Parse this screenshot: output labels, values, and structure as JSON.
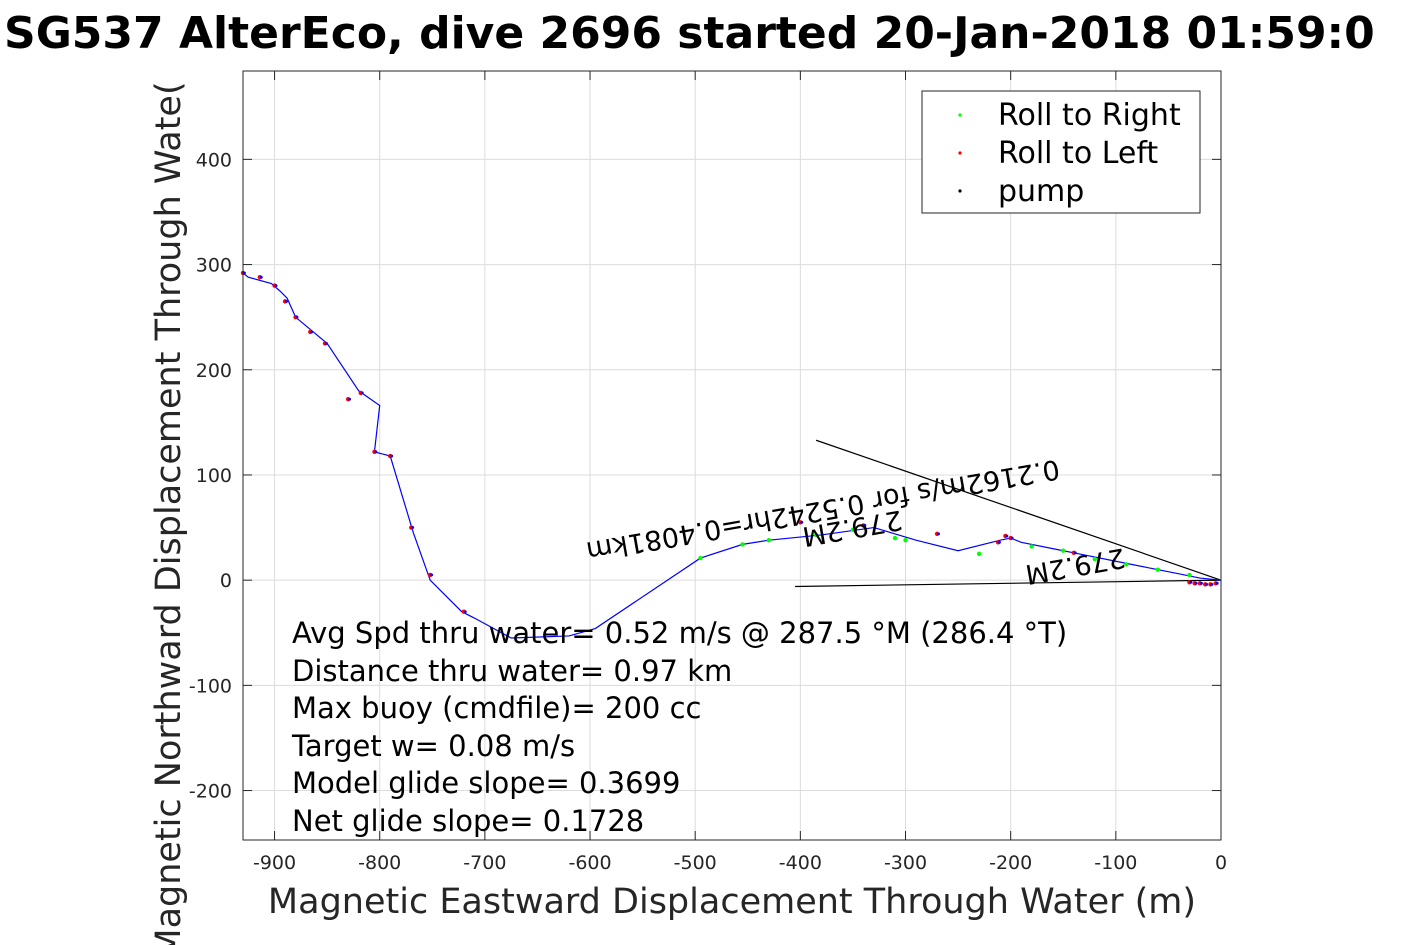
{
  "chart_data": {
    "type": "line",
    "title": "SG537 AlterEco, dive 2696 started 20-Jan-2018 01:59:0",
    "xlabel": "Magnetic Eastward Displacement Through Water (m)",
    "ylabel": "Magnetic Northward Displacement Through Wate(",
    "xlim": [
      -930,
      0
    ],
    "ylim": [
      -247,
      484
    ],
    "xticks": [
      -900,
      -800,
      -700,
      -600,
      -500,
      -400,
      -300,
      -200,
      -100,
      0
    ],
    "yticks": [
      400,
      300,
      200,
      100,
      0,
      -100,
      -200
    ],
    "grid": true,
    "legend_position": "top-right",
    "legend": [
      {
        "label": "Roll to Right",
        "color": "#00ff00"
      },
      {
        "label": "Roll to Left",
        "color": "#ff0000"
      },
      {
        "label": "pump",
        "color": "#000000"
      }
    ],
    "track_color": "#0000ff",
    "track": {
      "x": [
        0,
        -20,
        -40,
        -70,
        -100,
        -130,
        -160,
        -190,
        -200,
        -210,
        -250,
        -290,
        -330,
        -380,
        -430,
        -455,
        -495,
        -595,
        -620,
        -675,
        -710,
        -722,
        -752,
        -768,
        -790,
        -805,
        -800,
        -820,
        -850,
        -862,
        -880,
        -888,
        -895,
        -903,
        -925,
        -930
      ],
      "y": [
        0,
        2,
        6,
        12,
        18,
        24,
        30,
        36,
        40,
        38,
        28,
        38,
        50,
        43,
        38,
        34,
        21,
        -46,
        -53,
        -55,
        -36,
        -30,
        0,
        45,
        118,
        122,
        166,
        180,
        225,
        235,
        250,
        268,
        275,
        282,
        288,
        292
      ]
    },
    "roll_right": {
      "x": [
        -30,
        -60,
        -90,
        -120,
        -150,
        -180,
        -230,
        -300,
        -310,
        -350,
        -385,
        -430,
        -455,
        -495
      ],
      "y": [
        5,
        10,
        15,
        20,
        28,
        32,
        25,
        38,
        40,
        48,
        43,
        38,
        34,
        21
      ]
    },
    "roll_left": {
      "x": [
        -5,
        -10,
        -15,
        -20,
        -25,
        -30,
        -140,
        -200,
        -205,
        -212,
        -270,
        -340,
        -400,
        -720,
        -752,
        -770,
        -790,
        -805,
        -818,
        -830,
        -852,
        -866,
        -880,
        -890,
        -900,
        -914,
        -930
      ],
      "y": [
        -3,
        -4,
        -4,
        -3,
        -3,
        -2,
        26,
        40,
        42,
        36,
        44,
        52,
        55,
        -30,
        5,
        50,
        118,
        122,
        178,
        172,
        225,
        236,
        250,
        265,
        280,
        288,
        292
      ]
    },
    "current_vector": {
      "x": [
        0,
        -385
      ],
      "y": [
        0,
        133
      ]
    },
    "current_vector_2": {
      "x": [
        0,
        -405
      ],
      "y": [
        0,
        -6
      ]
    },
    "vector_labels": [
      {
        "text": "0.2162m/s for 0.5242hr=0.4081km",
        "angle_deg": 170
      },
      {
        "text": "279.2M",
        "angle_deg": 170
      },
      {
        "text": "279.2M",
        "angle_deg": 170
      }
    ],
    "annotations": [
      "Avg Spd thru water=  0.52 m/s @ 287.5 °M (286.4 °T)",
      "Distance thru water=  0.97 km",
      "Max buoy (cmdfile)= 200 cc",
      "Target w= 0.08 m/s",
      "Model glide slope= 0.3699",
      "Net glide slope= 0.1728"
    ]
  }
}
